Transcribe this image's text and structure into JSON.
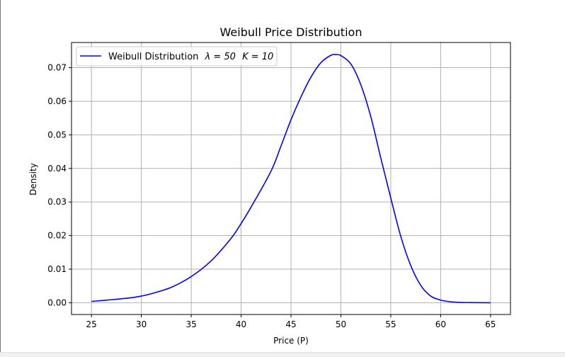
{
  "chart_data": {
    "type": "line",
    "title": "Weibull Price Distribution",
    "xlabel": "Price (P)",
    "ylabel": "Density",
    "xlim": [
      23.0,
      67.0
    ],
    "ylim": [
      -0.0035,
      0.0775
    ],
    "xticks": [
      25,
      30,
      35,
      40,
      45,
      50,
      55,
      60,
      65
    ],
    "yticks": [
      0.0,
      0.01,
      0.02,
      0.03,
      0.04,
      0.05,
      0.06,
      0.07
    ],
    "xtick_labels": [
      "25",
      "30",
      "35",
      "40",
      "45",
      "50",
      "55",
      "60",
      "65"
    ],
    "ytick_labels": [
      "0.00",
      "0.01",
      "0.02",
      "0.03",
      "0.04",
      "0.05",
      "0.06",
      "0.07"
    ],
    "grid": true,
    "legend_position": "upper-left",
    "series": [
      {
        "name": "Weibull Distribution λ = 50 K = 10",
        "color": "#0000ff",
        "x": [
          25,
          27,
          29,
          30,
          31,
          33,
          35,
          37,
          39,
          40,
          41,
          43,
          44,
          45,
          46,
          47,
          48,
          49,
          49.5,
          50,
          51,
          52,
          53,
          54,
          55,
          56,
          57,
          58,
          59,
          60,
          61,
          62,
          63,
          65
        ],
        "y": [
          0.0004,
          0.0009,
          0.0015,
          0.002,
          0.0027,
          0.0046,
          0.0078,
          0.0125,
          0.0192,
          0.0236,
          0.0285,
          0.0392,
          0.0467,
          0.0545,
          0.0613,
          0.0672,
          0.0715,
          0.0737,
          0.0739,
          0.0736,
          0.0711,
          0.0649,
          0.0554,
          0.0431,
          0.0312,
          0.0198,
          0.0111,
          0.0052,
          0.002,
          0.0008,
          0.0003,
          0.0001,
          5e-05,
          0.0
        ]
      }
    ]
  },
  "legend": {
    "label": "Weibull Distribution",
    "lambda_text": "λ = 50",
    "k_text": "K = 10"
  }
}
